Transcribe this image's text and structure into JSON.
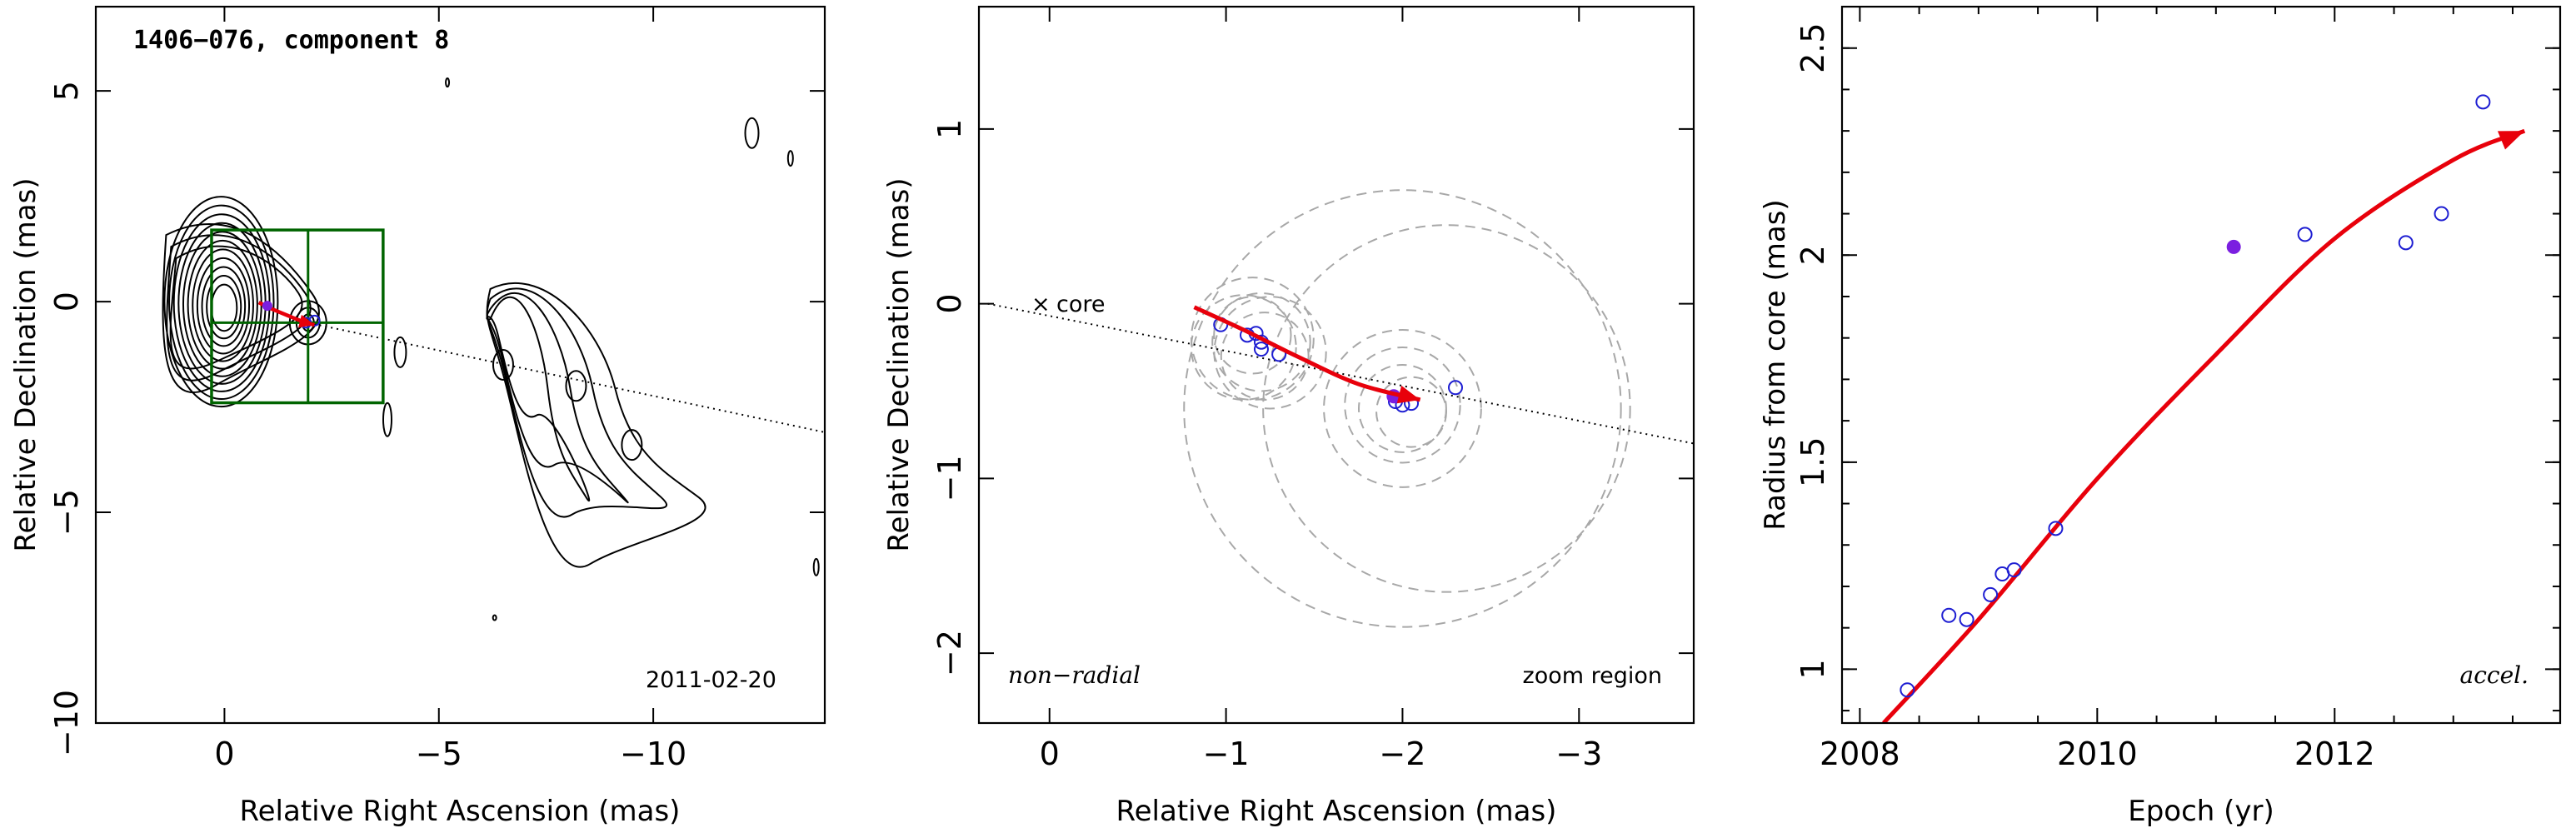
{
  "chart_data": [
    {
      "type": "contour",
      "title": "1406−076, component 8",
      "xlabel": "Relative Right Ascension (mas)",
      "ylabel": "Relative Declination (mas)",
      "xlim": [
        3,
        -14
      ],
      "ylim": [
        -10,
        7
      ],
      "x_ticks": [
        0,
        -5,
        -10
      ],
      "x_tick_labels": [
        "0",
        "−5",
        "−10"
      ],
      "y_ticks": [
        5,
        0,
        -5,
        -10
      ],
      "y_tick_labels": [
        "5",
        "0",
        "−5",
        "−10"
      ],
      "epoch_label": "2011-02-20",
      "contour_center": [
        0,
        0
      ],
      "contour_levels": 11,
      "zoom_box": {
        "x": [
          0.3,
          -3.7
        ],
        "y": [
          1.7,
          -2.4
        ]
      },
      "zoom_crosshair": {
        "x": -1.95,
        "y": -0.5
      },
      "core_line_endpoints": [
        [
          -1.95,
          -0.5
        ],
        [
          -14,
          -3.1
        ]
      ],
      "trajectory": [
        [
          -0.8,
          -0.02
        ],
        [
          -1.1,
          -0.17
        ],
        [
          -1.5,
          -0.34
        ],
        [
          -1.9,
          -0.5
        ],
        [
          -2.1,
          -0.55
        ]
      ],
      "jet_islands": [
        [
          -6.5,
          -1.5
        ],
        [
          -8.2,
          -2.0
        ],
        [
          -9.5,
          -3.4
        ]
      ],
      "color_trajectory": "#e8000b",
      "color_box": "#006400",
      "color_points": "#1e1ed2"
    },
    {
      "type": "scatter",
      "xlabel": "Relative Right Ascension (mas)",
      "ylabel": "Relative Declination (mas)",
      "xlim": [
        0.4,
        -3.65
      ],
      "ylim": [
        -2.4,
        1.7
      ],
      "x_ticks": [
        0,
        -1,
        -2,
        -3
      ],
      "x_tick_labels": [
        "0",
        "−1",
        "−2",
        "−3"
      ],
      "y_ticks": [
        1,
        0,
        -1,
        -2
      ],
      "y_tick_labels": [
        "1",
        "0",
        "−1",
        "−2"
      ],
      "core_label": "core",
      "core_marker": "×",
      "label_left": "non−radial",
      "label_right": "zoom region",
      "points": [
        [
          -0.97,
          -0.12
        ],
        [
          -1.12,
          -0.18
        ],
        [
          -1.17,
          -0.17
        ],
        [
          -1.2,
          -0.22
        ],
        [
          -1.2,
          -0.26
        ],
        [
          -1.3,
          -0.29
        ],
        [
          -1.96,
          -0.56
        ],
        [
          -2.0,
          -0.58
        ],
        [
          -2.05,
          -0.57
        ],
        [
          -2.3,
          -0.48
        ]
      ],
      "highlight_point": [
        -1.95,
        -0.53
      ],
      "trajectory": [
        [
          -0.82,
          -0.02
        ],
        [
          -1.1,
          -0.15
        ],
        [
          -1.4,
          -0.3
        ],
        [
          -1.75,
          -0.46
        ],
        [
          -2.1,
          -0.55
        ]
      ],
      "circles": [
        {
          "c": [
            -2.0,
            -0.6
          ],
          "r": 1.25
        },
        {
          "c": [
            -2.25,
            -0.6
          ],
          "r": 1.05
        },
        {
          "c": [
            -2.0,
            -0.6
          ],
          "r": 0.45
        },
        {
          "c": [
            -2.0,
            -0.58
          ],
          "r": 0.33
        },
        {
          "c": [
            -2.0,
            -0.6
          ],
          "r": 0.25
        },
        {
          "c": [
            -2.05,
            -0.62
          ],
          "r": 0.2
        },
        {
          "c": [
            -1.15,
            -0.2
          ],
          "r": 0.35
        },
        {
          "c": [
            -1.2,
            -0.22
          ],
          "r": 0.28
        },
        {
          "c": [
            -1.15,
            -0.18
          ],
          "r": 0.22
        },
        {
          "c": [
            -1.1,
            -0.25
          ],
          "r": 0.3
        },
        {
          "c": [
            -1.22,
            -0.3
          ],
          "r": 0.25
        },
        {
          "c": [
            -1.25,
            -0.28
          ],
          "r": 0.32
        }
      ],
      "core_line_endpoints": [
        [
          0.35,
          0.0
        ],
        [
          -3.65,
          -0.8
        ]
      ],
      "color_trajectory": "#e8000b",
      "color_points": "#1e1ed2",
      "color_highlight": "#7b1fe0"
    },
    {
      "type": "scatter",
      "xlabel": "Epoch (yr)",
      "ylabel": "Radius from core (mas)",
      "xlim": [
        2007.85,
        2013.9
      ],
      "ylim": [
        0.87,
        2.6
      ],
      "x_ticks": [
        2008,
        2010,
        2012
      ],
      "x_tick_labels": [
        "2008",
        "2010",
        "2012"
      ],
      "y_ticks": [
        1,
        1.5,
        2,
        2.5
      ],
      "y_tick_labels": [
        "1",
        "1.5",
        "2",
        "2.5"
      ],
      "label_right": "accel.",
      "points": [
        {
          "x": 2008.4,
          "y": 0.95
        },
        {
          "x": 2008.75,
          "y": 1.13
        },
        {
          "x": 2008.9,
          "y": 1.12
        },
        {
          "x": 2009.1,
          "y": 1.18
        },
        {
          "x": 2009.2,
          "y": 1.23
        },
        {
          "x": 2009.3,
          "y": 1.24
        },
        {
          "x": 2009.65,
          "y": 1.34
        },
        {
          "x": 2011.75,
          "y": 2.05
        },
        {
          "x": 2012.6,
          "y": 2.03
        },
        {
          "x": 2012.9,
          "y": 2.1
        },
        {
          "x": 2013.25,
          "y": 2.37
        }
      ],
      "highlight_point": {
        "x": 2011.15,
        "y": 2.02
      },
      "fit_curve": [
        {
          "x": 2008.2,
          "y": 0.87
        },
        {
          "x": 2009,
          "y": 1.12
        },
        {
          "x": 2010,
          "y": 1.46
        },
        {
          "x": 2011,
          "y": 1.76
        },
        {
          "x": 2012,
          "y": 2.04
        },
        {
          "x": 2013,
          "y": 2.23
        },
        {
          "x": 2013.6,
          "y": 2.3
        }
      ],
      "color_trajectory": "#e8000b",
      "color_points": "#1e1ed2",
      "color_highlight": "#7b1fe0"
    }
  ]
}
